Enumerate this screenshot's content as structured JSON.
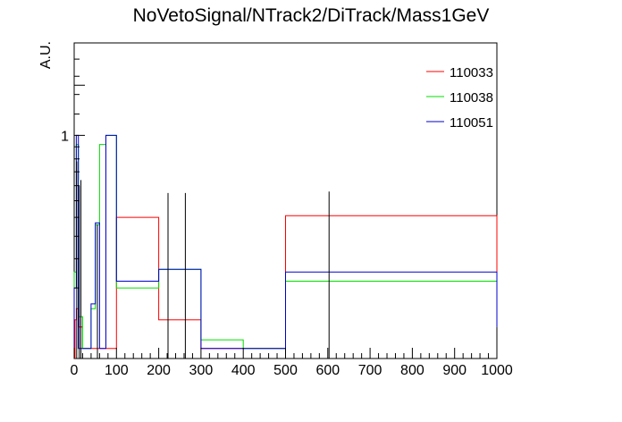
{
  "chart_data": {
    "type": "line",
    "title": "NoVetoSignal/NTrack2/DiTrack/Mass1GeV",
    "xlabel": "",
    "ylabel": "A.U.",
    "xlim": [
      0,
      1000
    ],
    "ylim": [
      0,
      2.0
    ],
    "y_scale": "sqrt",
    "x_tick_labels": [
      "0",
      "100",
      "200",
      "300",
      "400",
      "500",
      "600",
      "700",
      "800",
      "900",
      "1000"
    ],
    "y_tick_labels": [
      "1"
    ],
    "legend_position": "top-right",
    "series": [
      {
        "name": "110033",
        "color": "#ff0000",
        "bins": [
          [
            0,
            5,
            0.03
          ],
          [
            5,
            10,
            0.05
          ],
          [
            10,
            20,
            0.02
          ],
          [
            20,
            40,
            0.002
          ],
          [
            40,
            50,
            0.002
          ],
          [
            50,
            60,
            0.002
          ],
          [
            60,
            75,
            0.002
          ],
          [
            75,
            100,
            0.002
          ],
          [
            100,
            200,
            0.4
          ],
          [
            200,
            300,
            0.03
          ],
          [
            300,
            400,
            0.002
          ],
          [
            400,
            500,
            0.002
          ],
          [
            500,
            1000,
            0.41
          ]
        ]
      },
      {
        "name": "110038",
        "color": "#00dd00",
        "bins": [
          [
            0,
            5,
            0.15
          ],
          [
            5,
            10,
            0.92
          ],
          [
            10,
            20,
            0.035
          ],
          [
            20,
            40,
            0.002
          ],
          [
            40,
            50,
            0.05
          ],
          [
            50,
            60,
            0.36
          ],
          [
            60,
            75,
            0.92
          ],
          [
            75,
            100,
            1.0
          ],
          [
            100,
            200,
            0.1
          ],
          [
            200,
            300,
            0.16
          ],
          [
            300,
            400,
            0.007
          ],
          [
            400,
            500,
            0.002
          ],
          [
            500,
            1000,
            0.12
          ]
        ]
      },
      {
        "name": "110051",
        "color": "#0000cc",
        "bins": [
          [
            0,
            5,
            0.1
          ],
          [
            5,
            10,
            1.0
          ],
          [
            10,
            20,
            0.002
          ],
          [
            20,
            40,
            0.002
          ],
          [
            40,
            50,
            0.06
          ],
          [
            50,
            60,
            0.37
          ],
          [
            60,
            75,
            0.002
          ],
          [
            75,
            100,
            1.0
          ],
          [
            100,
            200,
            0.12
          ],
          [
            200,
            300,
            0.16
          ],
          [
            300,
            400,
            0.002
          ],
          [
            400,
            500,
            0.002
          ],
          [
            500,
            1000,
            0.15
          ]
        ]
      }
    ],
    "errors": [
      {
        "x": 2,
        "low": 0.0,
        "high": 0.03,
        "color": "#ff0000"
      },
      {
        "x": 6,
        "low": 0.0,
        "high": 0.78,
        "color": "#000000"
      },
      {
        "x": 12,
        "low": 0.0,
        "high": 0.6,
        "color": "#000000"
      },
      {
        "x": 16,
        "low": 0.0,
        "high": 0.64,
        "color": "#000000"
      },
      {
        "x": 55,
        "low": 0.0,
        "high": 0.36,
        "color": "#000000"
      },
      {
        "x": 222,
        "low": 0.0,
        "high": 0.55,
        "color": "#000000"
      },
      {
        "x": 263,
        "low": 0.0,
        "high": 0.55,
        "color": "#000000"
      },
      {
        "x": 603,
        "low": 0.0,
        "high": 0.56,
        "color": "#000000"
      }
    ]
  }
}
